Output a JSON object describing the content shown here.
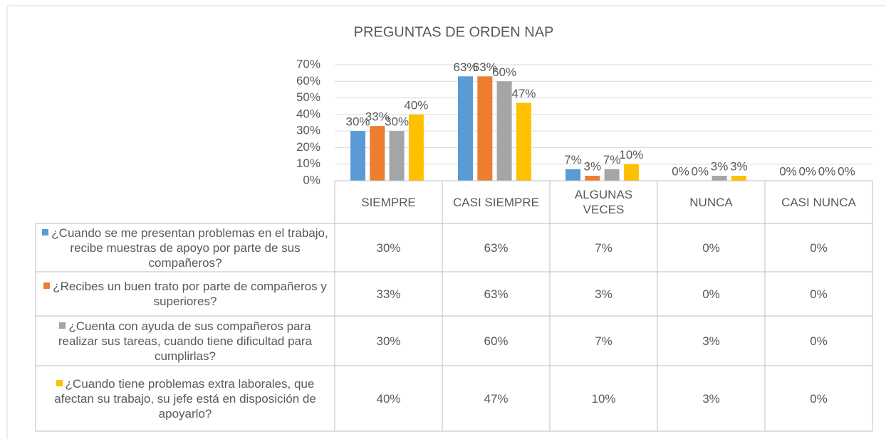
{
  "chart_data": {
    "type": "bar",
    "title": "PREGUNTAS DE ORDEN NAP",
    "categories": [
      "SIEMPRE",
      "CASI SIEMPRE",
      "ALGUNAS VECES",
      "NUNCA",
      "CASI NUNCA"
    ],
    "series": [
      {
        "name": "¿Cuando se me presentan problemas en el trabajo, recibe muestras de apoyo por parte de sus compañeros?",
        "color": "#5b9bd5",
        "values": [
          30,
          63,
          7,
          0,
          0
        ],
        "value_labels": [
          "30%",
          "63%",
          "7%",
          "0%",
          "0%"
        ]
      },
      {
        "name": "¿Recibes un buen trato por parte de compañeros y superiores?",
        "color": "#ed7d31",
        "values": [
          33,
          63,
          3,
          0,
          0
        ],
        "value_labels": [
          "33%",
          "63%",
          "3%",
          "0%",
          "0%"
        ]
      },
      {
        "name": "¿Cuenta con ayuda de sus compañeros para realizar sus tareas, cuando tiene dificultad para cumplirlas?",
        "color": "#a5a5a5",
        "values": [
          30,
          60,
          7,
          3,
          0
        ],
        "value_labels": [
          "30%",
          "60%",
          "7%",
          "3%",
          "0%"
        ]
      },
      {
        "name": "¿Cuando tiene problemas extra laborales, que afectan su trabajo, su jefe está en disposición de apoyarlo?",
        "color": "#ffc000",
        "values": [
          40,
          47,
          10,
          3,
          0
        ],
        "value_labels": [
          "40%",
          "47%",
          "10%",
          "3%",
          "0%"
        ]
      }
    ],
    "ylim": [
      0,
      70
    ],
    "yticks": [
      {
        "value": 0,
        "label": "0%"
      },
      {
        "value": 10,
        "label": "10%"
      },
      {
        "value": 20,
        "label": "20%"
      },
      {
        "value": 30,
        "label": "30%"
      },
      {
        "value": 40,
        "label": "40%"
      },
      {
        "value": 50,
        "label": "50%"
      },
      {
        "value": 60,
        "label": "60%"
      },
      {
        "value": 70,
        "label": "70%"
      }
    ],
    "grid": true,
    "legend": "table"
  }
}
